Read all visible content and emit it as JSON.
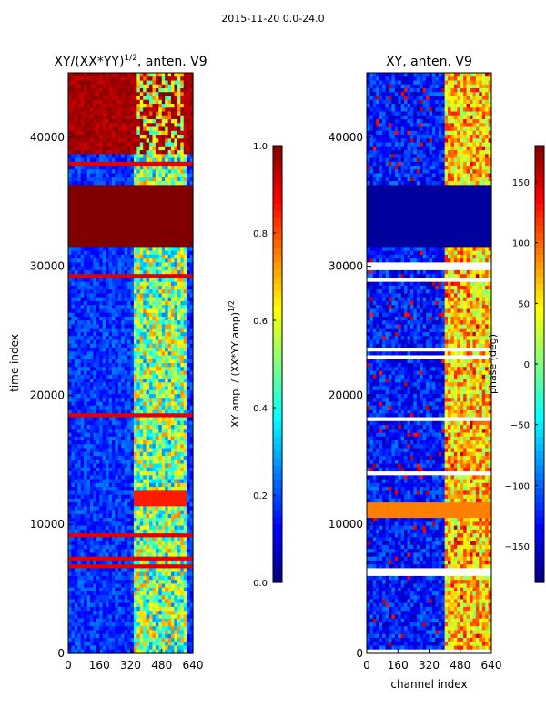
{
  "suptitle": "2015-11-20 0.0-24.0",
  "chart_data": [
    {
      "type": "heatmap",
      "title_main": "XY/(XX*YY)",
      "title_sup": "1/2",
      "title_tail": ", anten. V9",
      "xlabel": "",
      "ylabel": "time index",
      "xticks": [
        0,
        160,
        320,
        480,
        640
      ],
      "xlim": [
        0,
        640
      ],
      "yticks": [
        0,
        10000,
        20000,
        30000,
        40000
      ],
      "ylim": [
        0,
        45000
      ],
      "colorbar": {
        "label_main": "XY amp. / (XX*YY amp)",
        "label_sup": "1/2",
        "range": [
          0.0,
          1.0
        ],
        "ticks": [
          0.0,
          0.2,
          0.4,
          0.6,
          0.8,
          1.0
        ],
        "tick_labels": [
          "0.0",
          "0.2",
          "0.4",
          "0.6",
          "0.8",
          "1.0"
        ],
        "cmap": "jet"
      },
      "features": [
        {
          "kind": "saturated_block",
          "y_range": [
            31600,
            36200
          ],
          "value": 1.0
        },
        {
          "kind": "high_band_region",
          "y_range": [
            38800,
            45000
          ],
          "value": 0.95
        },
        {
          "kind": "bright_channel_band",
          "x_range": [
            340,
            600
          ],
          "value": 0.5
        },
        {
          "kind": "hot_rows",
          "y": 12000,
          "value": 0.9
        }
      ]
    },
    {
      "type": "heatmap",
      "title_main": "XY, anten. V9",
      "xlabel": "channel index",
      "ylabel": "",
      "xticks": [
        0,
        160,
        320,
        480,
        640
      ],
      "xlim": [
        0,
        640
      ],
      "yticks": [
        0,
        10000,
        20000,
        30000,
        40000
      ],
      "ylim": [
        0,
        45000
      ],
      "colorbar": {
        "label_main": "phase (deg)",
        "range": [
          -180,
          180
        ],
        "ticks": [
          -150,
          -100,
          -50,
          0,
          50,
          100,
          150
        ],
        "tick_labels": [
          "−150",
          "−100",
          "−50",
          "0",
          "50",
          "100",
          "150"
        ],
        "cmap": "jet"
      },
      "features": [
        {
          "kind": "flat_block",
          "y_range": [
            31600,
            36200
          ],
          "value": -170
        },
        {
          "kind": "bright_channel_band",
          "x_range": [
            400,
            640
          ],
          "value": 40
        },
        {
          "kind": "hot_rows",
          "y": 11000,
          "value": 90
        }
      ]
    }
  ]
}
